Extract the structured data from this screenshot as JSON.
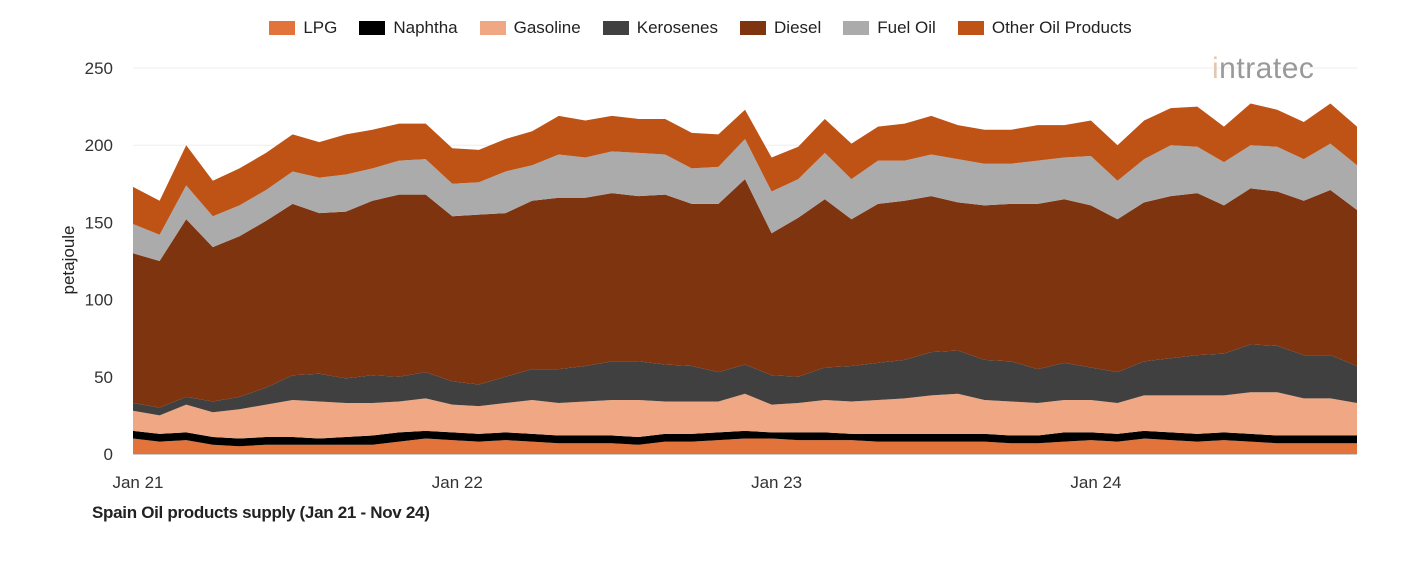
{
  "chart_data": {
    "type": "area",
    "stacked": true,
    "title": "Spain Oil products supply (Jan 21 - Nov 24)",
    "xlabel": "",
    "ylabel": "petajoule",
    "ylim": [
      0,
      250
    ],
    "yticks": [
      0,
      50,
      100,
      150,
      200,
      250
    ],
    "xticks": [
      {
        "index": 0,
        "label": "Jan 21"
      },
      {
        "index": 12,
        "label": "Jan 22"
      },
      {
        "index": 24,
        "label": "Jan 23"
      },
      {
        "index": 36,
        "label": "Jan 24"
      }
    ],
    "x_start": "Jan 21",
    "x_end": "Nov 24",
    "grid": true,
    "legend_position": "top-center",
    "series": [
      {
        "name": "LPG",
        "color": "#E2733A",
        "values": [
          10,
          8,
          9,
          6,
          5,
          6,
          6,
          6,
          6,
          6,
          8,
          10,
          9,
          8,
          9,
          8,
          7,
          7,
          7,
          6,
          8,
          8,
          9,
          10,
          10,
          9,
          9,
          9,
          8,
          8,
          8,
          8,
          8,
          7,
          7,
          8,
          9,
          8,
          10,
          9,
          8,
          9,
          8,
          7,
          7,
          7,
          7
        ]
      },
      {
        "name": "Naphtha",
        "color": "#000000",
        "values": [
          5,
          5,
          5,
          5,
          5,
          5,
          5,
          4,
          5,
          6,
          6,
          5,
          5,
          5,
          5,
          5,
          5,
          5,
          5,
          5,
          5,
          5,
          5,
          5,
          4,
          5,
          5,
          4,
          5,
          5,
          5,
          5,
          5,
          5,
          5,
          6,
          5,
          5,
          5,
          5,
          5,
          5,
          5,
          5,
          5,
          5,
          5
        ]
      },
      {
        "name": "Gasoline",
        "color": "#EFA883",
        "values": [
          13,
          12,
          18,
          16,
          19,
          21,
          24,
          24,
          22,
          21,
          20,
          21,
          18,
          18,
          19,
          22,
          21,
          22,
          23,
          24,
          21,
          21,
          20,
          24,
          18,
          19,
          21,
          21,
          22,
          23,
          25,
          26,
          22,
          22,
          21,
          21,
          21,
          20,
          23,
          24,
          25,
          24,
          27,
          28,
          24,
          24,
          21
        ]
      },
      {
        "name": "Kerosenes",
        "color": "#404040",
        "values": [
          5,
          5,
          5,
          7,
          8,
          11,
          16,
          18,
          16,
          18,
          16,
          17,
          15,
          14,
          17,
          20,
          22,
          23,
          25,
          25,
          24,
          23,
          19,
          19,
          19,
          17,
          21,
          23,
          24,
          25,
          28,
          28,
          26,
          26,
          22,
          24,
          21,
          20,
          22,
          24,
          26,
          27,
          31,
          30,
          28,
          28,
          24
        ]
      },
      {
        "name": "Diesel",
        "color": "#7F3410",
        "values": [
          97,
          95,
          115,
          100,
          104,
          108,
          111,
          104,
          108,
          113,
          118,
          115,
          107,
          110,
          106,
          109,
          111,
          109,
          109,
          107,
          110,
          105,
          109,
          120,
          92,
          103,
          109,
          95,
          103,
          103,
          101,
          96,
          100,
          102,
          107,
          106,
          105,
          99,
          103,
          105,
          105,
          96,
          101,
          100,
          100,
          107,
          101
        ]
      },
      {
        "name": "Fuel Oil",
        "color": "#ABABAB",
        "values": [
          19,
          17,
          22,
          20,
          20,
          20,
          21,
          23,
          24,
          21,
          22,
          23,
          21,
          21,
          27,
          23,
          28,
          26,
          27,
          28,
          26,
          23,
          24,
          26,
          27,
          25,
          30,
          26,
          28,
          26,
          27,
          28,
          27,
          26,
          28,
          27,
          32,
          25,
          28,
          33,
          30,
          28,
          28,
          29,
          27,
          30,
          29
        ]
      },
      {
        "name": "Other Oil Products",
        "color": "#BF5316",
        "values": [
          24,
          22,
          26,
          23,
          24,
          24,
          24,
          23,
          26,
          25,
          24,
          23,
          23,
          21,
          21,
          22,
          25,
          24,
          23,
          22,
          23,
          23,
          21,
          19,
          22,
          21,
          22,
          23,
          22,
          24,
          25,
          22,
          22,
          22,
          23,
          21,
          23,
          23,
          25,
          24,
          26,
          23,
          27,
          24,
          24,
          26,
          25
        ]
      }
    ]
  },
  "logo": {
    "text": "intratec"
  }
}
